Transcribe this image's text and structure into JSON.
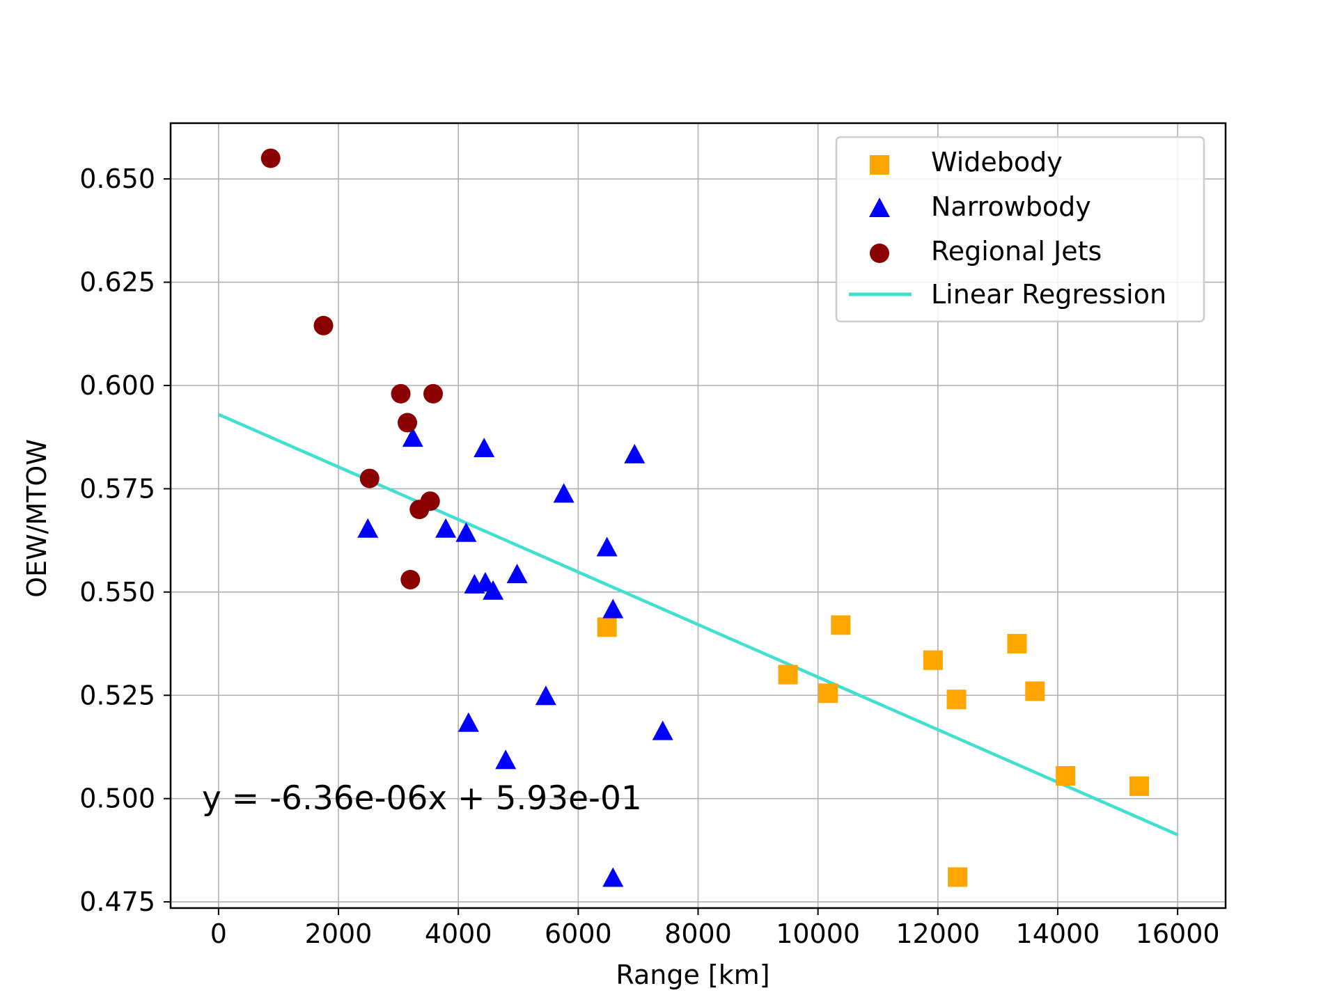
{
  "chart_data": {
    "type": "scatter",
    "title": "",
    "xlabel": "Range [km]",
    "ylabel": "OEW/MTOW",
    "xlim": [
      -800,
      16800
    ],
    "ylim": [
      0.4735,
      0.6635
    ],
    "xticks": [
      "0",
      "2000",
      "4000",
      "6000",
      "8000",
      "10000",
      "12000",
      "14000",
      "16000"
    ],
    "yticks": [
      "0.475",
      "0.500",
      "0.525",
      "0.550",
      "0.575",
      "0.600",
      "0.625",
      "0.650"
    ],
    "grid": true,
    "legend_position": "top-right",
    "series": [
      {
        "name": "Widebody",
        "marker": "square",
        "color": "#FFA500",
        "points": [
          [
            6480,
            0.5415
          ],
          [
            9500,
            0.53
          ],
          [
            10170,
            0.5255
          ],
          [
            10380,
            0.542
          ],
          [
            11920,
            0.5335
          ],
          [
            12310,
            0.524
          ],
          [
            12330,
            0.481
          ],
          [
            13320,
            0.5375
          ],
          [
            13620,
            0.526
          ],
          [
            14130,
            0.5055
          ],
          [
            15360,
            0.503
          ]
        ]
      },
      {
        "name": "Narrowbody",
        "marker": "triangle",
        "color": "#0000FF",
        "points": [
          [
            2490,
            0.565
          ],
          [
            3240,
            0.587
          ],
          [
            3790,
            0.565
          ],
          [
            4130,
            0.564
          ],
          [
            4170,
            0.518
          ],
          [
            4270,
            0.5515
          ],
          [
            4430,
            0.5845
          ],
          [
            4450,
            0.552
          ],
          [
            4580,
            0.55
          ],
          [
            4790,
            0.509
          ],
          [
            4980,
            0.554
          ],
          [
            5460,
            0.5245
          ],
          [
            5760,
            0.5735
          ],
          [
            6480,
            0.5605
          ],
          [
            6580,
            0.5455
          ],
          [
            6580,
            0.4805
          ],
          [
            6940,
            0.583
          ],
          [
            7410,
            0.516
          ]
        ]
      },
      {
        "name": "Regional Jets",
        "marker": "circle",
        "color": "#8B0000",
        "points": [
          [
            870,
            0.655
          ],
          [
            1750,
            0.6145
          ],
          [
            2520,
            0.5775
          ],
          [
            3040,
            0.598
          ],
          [
            3150,
            0.591
          ],
          [
            3200,
            0.553
          ],
          [
            3350,
            0.57
          ],
          [
            3530,
            0.572
          ],
          [
            3580,
            0.598
          ]
        ]
      }
    ],
    "regression": {
      "name": "Linear Regression",
      "color": "#40E0D0",
      "slope": -6.36e-06,
      "intercept": 0.593,
      "x_range": [
        0,
        16000
      ],
      "equation_label": "y = -6.36e-06x + 5.93e-01"
    }
  }
}
